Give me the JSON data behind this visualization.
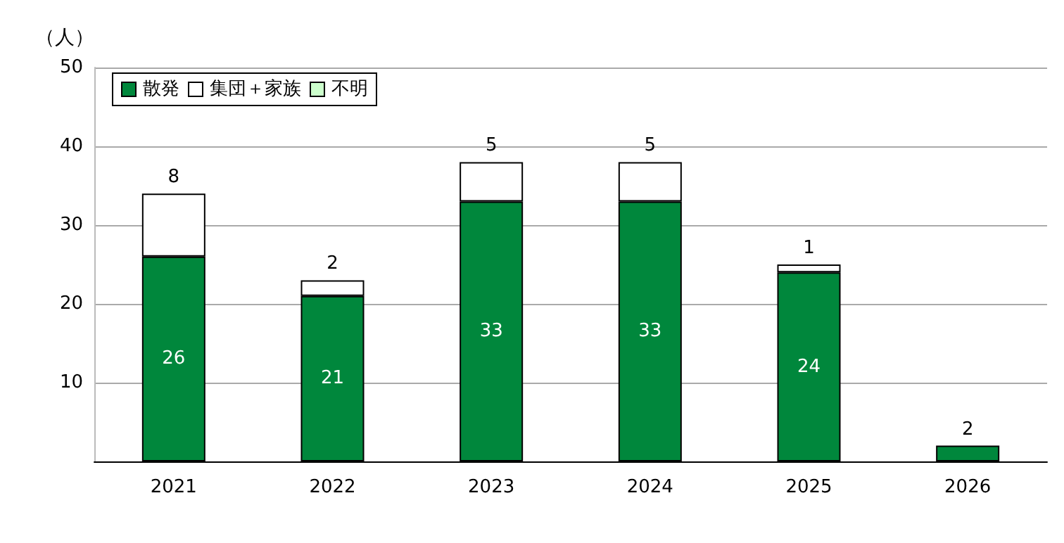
{
  "chart_data": {
    "type": "bar",
    "ylabel": "（人）",
    "categories": [
      "2021",
      "2022",
      "2023",
      "2024",
      "2025",
      "2026"
    ],
    "series": [
      {
        "name": "散発",
        "color": "#00873c",
        "values": [
          26,
          21,
          33,
          33,
          24,
          2
        ]
      },
      {
        "name": "集団＋家族",
        "color": "#ffffff",
        "values": [
          8,
          2,
          5,
          5,
          1,
          null
        ]
      },
      {
        "name": "不明",
        "color": "#ccffcc",
        "values": [
          null,
          null,
          null,
          null,
          null,
          null
        ]
      }
    ],
    "stacked": true,
    "ylim": [
      0,
      50
    ],
    "yticks": [
      {
        "value": 0,
        "label": null
      },
      10,
      20,
      30,
      40,
      50
    ],
    "grid": "y",
    "legend": "top left",
    "data_labels": true
  }
}
